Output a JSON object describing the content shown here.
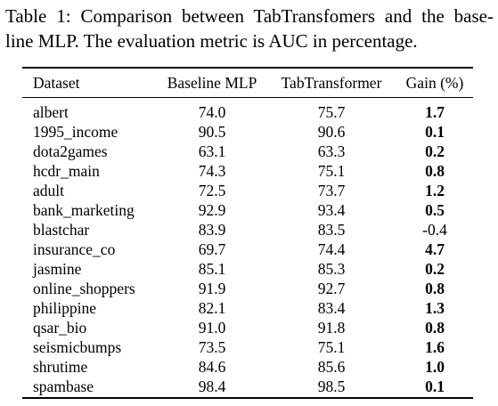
{
  "caption": {
    "line1": "Table 1: Comparison between TabTransfomers and the base-",
    "line2": "line MLP. The evaluation metric is AUC in percentage."
  },
  "table": {
    "headers": [
      "Dataset",
      "Baseline MLP",
      "TabTransformer",
      "Gain (%)"
    ],
    "rows": [
      {
        "dataset": "albert",
        "baseline": "74.0",
        "tab": "75.7",
        "gain": "1.7",
        "gain_bold": true
      },
      {
        "dataset": "1995_income",
        "baseline": "90.5",
        "tab": "90.6",
        "gain": "0.1",
        "gain_bold": true
      },
      {
        "dataset": "dota2games",
        "baseline": "63.1",
        "tab": "63.3",
        "gain": "0.2",
        "gain_bold": true
      },
      {
        "dataset": "hcdr_main",
        "baseline": "74.3",
        "tab": "75.1",
        "gain": "0.8",
        "gain_bold": true
      },
      {
        "dataset": "adult",
        "baseline": "72.5",
        "tab": "73.7",
        "gain": "1.2",
        "gain_bold": true
      },
      {
        "dataset": "bank_marketing",
        "baseline": "92.9",
        "tab": "93.4",
        "gain": "0.5",
        "gain_bold": true
      },
      {
        "dataset": "blastchar",
        "baseline": "83.9",
        "tab": "83.5",
        "gain": "-0.4",
        "gain_bold": false
      },
      {
        "dataset": "insurance_co",
        "baseline": "69.7",
        "tab": "74.4",
        "gain": "4.7",
        "gain_bold": true
      },
      {
        "dataset": "jasmine",
        "baseline": "85.1",
        "tab": "85.3",
        "gain": "0.2",
        "gain_bold": true
      },
      {
        "dataset": "online_shoppers",
        "baseline": "91.9",
        "tab": "92.7",
        "gain": "0.8",
        "gain_bold": true
      },
      {
        "dataset": "philippine",
        "baseline": "82.1",
        "tab": "83.4",
        "gain": "1.3",
        "gain_bold": true
      },
      {
        "dataset": "qsar_bio",
        "baseline": "91.0",
        "tab": "91.8",
        "gain": "0.8",
        "gain_bold": true
      },
      {
        "dataset": "seismicbumps",
        "baseline": "73.5",
        "tab": "75.1",
        "gain": "1.6",
        "gain_bold": true
      },
      {
        "dataset": "shrutime",
        "baseline": "84.6",
        "tab": "85.6",
        "gain": "1.0",
        "gain_bold": true
      },
      {
        "dataset": "spambase",
        "baseline": "98.4",
        "tab": "98.5",
        "gain": "0.1",
        "gain_bold": true
      }
    ]
  }
}
